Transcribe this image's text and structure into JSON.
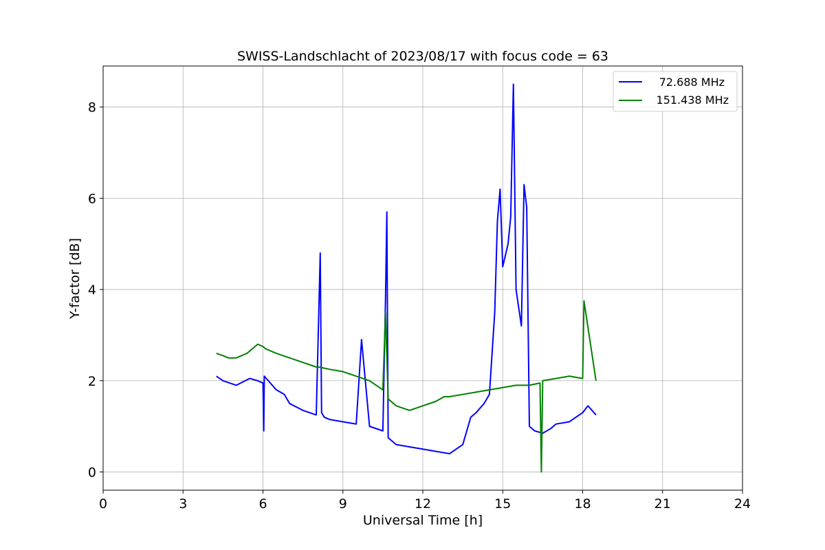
{
  "chart_data": {
    "type": "line",
    "title": "SWISS-Landschlacht of 2023/08/17 with focus code = 63",
    "xlabel": "Universal Time [h]",
    "ylabel": "Y-factor [dB]",
    "xlim": [
      0,
      24
    ],
    "ylim": [
      -0.4,
      8.9
    ],
    "xticks": [
      0,
      3,
      6,
      9,
      12,
      15,
      18,
      21,
      24
    ],
    "xtick_labels": [
      "0",
      "3",
      "6",
      "9",
      "12",
      "15",
      "18",
      "21",
      "24"
    ],
    "yticks": [
      0,
      2,
      4,
      6,
      8
    ],
    "ytick_labels": [
      "0",
      "2",
      "4",
      "6",
      "8"
    ],
    "grid": true,
    "legend_position": "top-right",
    "series": [
      {
        "name": "72.688 MHz",
        "color": "#0000ff",
        "x": [
          4.25,
          4.5,
          5.0,
          5.5,
          5.8,
          6.0,
          6.03,
          6.05,
          6.2,
          6.5,
          6.8,
          7.0,
          7.5,
          8.0,
          8.15,
          8.2,
          8.3,
          8.5,
          9.0,
          9.5,
          9.7,
          10.0,
          10.5,
          10.6,
          10.65,
          10.7,
          11.0,
          11.5,
          12.0,
          12.5,
          13.0,
          13.5,
          13.8,
          14.0,
          14.3,
          14.5,
          14.7,
          14.8,
          14.9,
          15.0,
          15.2,
          15.3,
          15.4,
          15.5,
          15.7,
          15.8,
          15.9,
          16.0,
          16.2,
          16.5,
          16.8,
          17.0,
          17.5,
          18.0,
          18.2,
          18.5
        ],
        "y": [
          2.1,
          2.0,
          1.9,
          2.05,
          2.0,
          1.95,
          0.9,
          2.1,
          2.0,
          1.8,
          1.7,
          1.5,
          1.35,
          1.25,
          4.8,
          1.3,
          1.2,
          1.15,
          1.1,
          1.05,
          2.9,
          1.0,
          0.9,
          3.8,
          5.7,
          0.75,
          0.6,
          0.55,
          0.5,
          0.45,
          0.4,
          0.6,
          1.2,
          1.3,
          1.5,
          1.7,
          3.5,
          5.5,
          6.2,
          4.5,
          5.0,
          5.6,
          8.5,
          4.0,
          3.2,
          6.3,
          5.8,
          1.0,
          0.9,
          0.85,
          0.95,
          1.05,
          1.1,
          1.3,
          1.45,
          1.25
        ]
      },
      {
        "name": "151.438 MHz",
        "color": "#008000",
        "x": [
          4.25,
          4.5,
          4.7,
          5.0,
          5.4,
          5.6,
          5.8,
          6.0,
          6.1,
          6.5,
          7.0,
          7.5,
          8.0,
          8.1,
          8.5,
          9.0,
          9.5,
          10.0,
          10.5,
          10.6,
          10.7,
          11.0,
          11.5,
          12.0,
          12.5,
          12.8,
          13.0,
          13.5,
          14.0,
          14.5,
          15.0,
          15.5,
          16.0,
          16.4,
          16.45,
          16.5,
          17.0,
          17.5,
          18.0,
          18.05,
          18.5
        ],
        "y": [
          2.6,
          2.55,
          2.5,
          2.5,
          2.6,
          2.7,
          2.8,
          2.75,
          2.7,
          2.6,
          2.5,
          2.4,
          2.3,
          2.3,
          2.25,
          2.2,
          2.1,
          2.0,
          1.8,
          3.5,
          1.6,
          1.45,
          1.35,
          1.45,
          1.55,
          1.65,
          1.65,
          1.7,
          1.75,
          1.8,
          1.85,
          1.9,
          1.9,
          1.95,
          0.0,
          2.0,
          2.05,
          2.1,
          2.05,
          3.75,
          2.0
        ]
      }
    ]
  }
}
